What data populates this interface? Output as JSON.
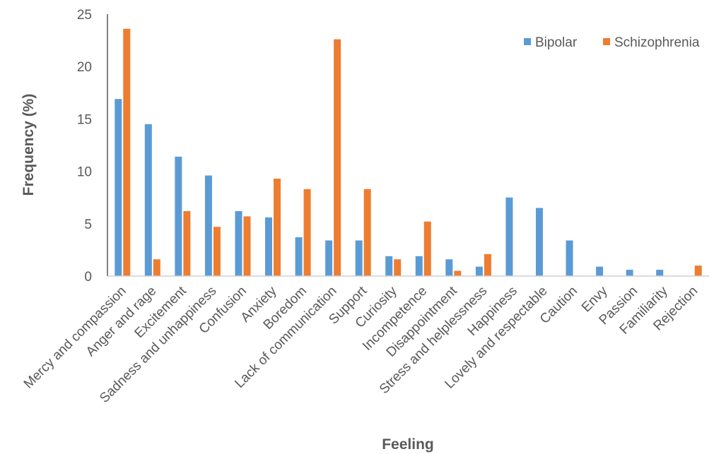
{
  "chart_data": {
    "type": "bar",
    "title": "",
    "xlabel": "Feeling",
    "ylabel": "Frequency (%)",
    "ylim": [
      0,
      25
    ],
    "yticks": [
      0,
      5,
      10,
      15,
      20,
      25
    ],
    "grid": false,
    "legend_position": "top-right",
    "categories": [
      "Mercy and compassion",
      "Anger and rage",
      "Excitement",
      "Sadness and unhappiness",
      "Confusion",
      "Anxiety",
      "Boredom",
      "Lack of communication",
      "Support",
      "Curiosity",
      "Incompetence",
      "Disappointment",
      "Stress and helplessness",
      "Happiness",
      "Lovely and respectable",
      "Caution",
      "Envy",
      "Passion",
      "Familiarity",
      "Rejection"
    ],
    "series": [
      {
        "name": "Bipolar",
        "color": "#5B9BD5",
        "values": [
          16.9,
          14.5,
          11.4,
          9.6,
          6.2,
          5.6,
          3.7,
          3.4,
          3.4,
          1.9,
          1.9,
          1.6,
          0.9,
          7.5,
          6.5,
          3.4,
          0.9,
          0.6,
          0.6,
          0
        ]
      },
      {
        "name": "Schizophrenia",
        "color": "#ED7D31",
        "values": [
          23.6,
          1.6,
          6.2,
          4.7,
          5.7,
          9.3,
          8.3,
          22.6,
          8.3,
          1.6,
          5.2,
          0.5,
          2.1,
          0,
          0,
          0,
          0,
          0,
          0,
          1.0
        ]
      }
    ]
  }
}
